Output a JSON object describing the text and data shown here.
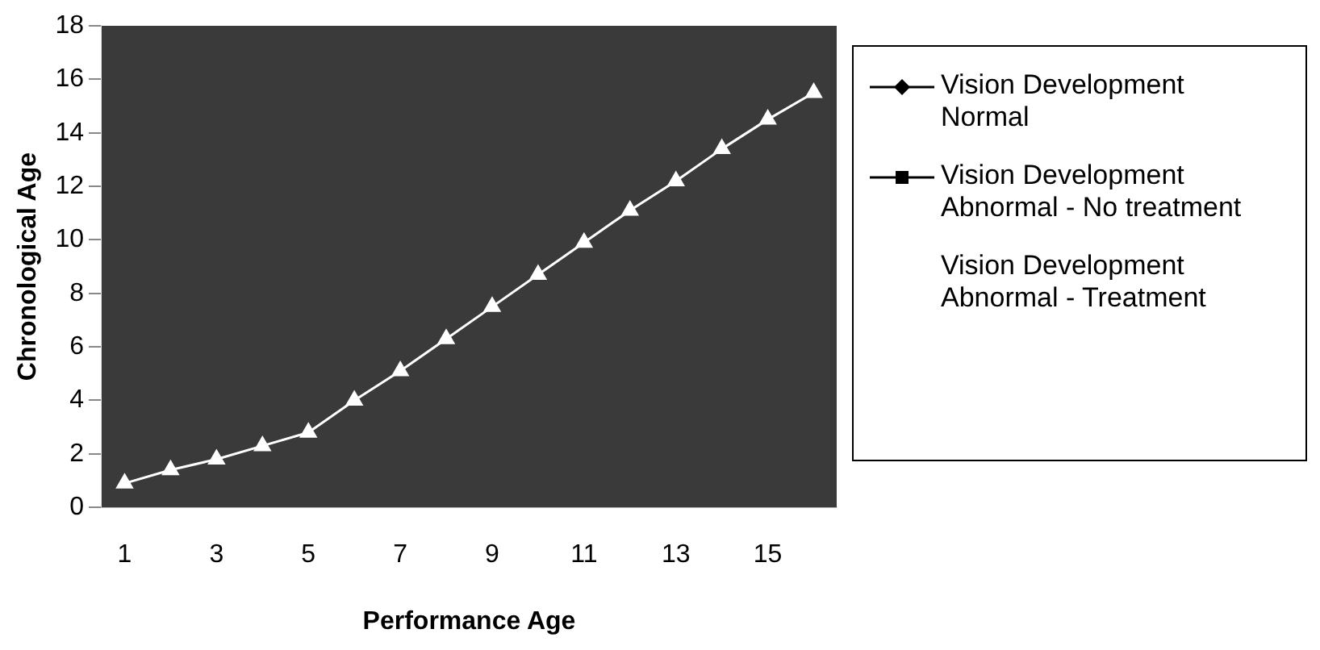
{
  "chart_data": {
    "type": "line",
    "xlabel": "Performance Age",
    "ylabel": "Chronological Age",
    "x": [
      1,
      2,
      3,
      4,
      5,
      6,
      7,
      8,
      9,
      10,
      11,
      12,
      13,
      14,
      15,
      16
    ],
    "xlim": [
      0.5,
      16.5
    ],
    "xticks": [
      1,
      3,
      5,
      7,
      9,
      11,
      13,
      15
    ],
    "series": [
      {
        "name": "Vision Development Normal",
        "color": "#000000",
        "marker": "diamond",
        "values": [
          null,
          null,
          null,
          null,
          null,
          null,
          null,
          null,
          null,
          null,
          null,
          null,
          null,
          null,
          null,
          null
        ]
      },
      {
        "name": "Vision Development Abnormal - No treatment",
        "color": "#000000",
        "marker": "square",
        "values": [
          null,
          null,
          null,
          null,
          null,
          null,
          null,
          null,
          null,
          null,
          null,
          null,
          null,
          null,
          null,
          null
        ]
      },
      {
        "name": "Vision Development Abnormal - Treatment",
        "color": "#ffffff",
        "marker": "triangle",
        "values": [
          0.9,
          1.4,
          1.8,
          2.3,
          2.8,
          4.0,
          5.1,
          6.3,
          7.5,
          8.7,
          9.9,
          11.1,
          12.2,
          13.4,
          14.5,
          15.5
        ]
      }
    ],
    "ylim": [
      0,
      18
    ],
    "yticks": [
      0,
      2,
      4,
      6,
      8,
      10,
      12,
      14,
      16,
      18
    ],
    "grid": false,
    "legend": "right",
    "line_style": "solid"
  }
}
